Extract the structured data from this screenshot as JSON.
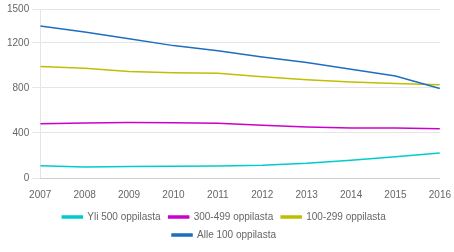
{
  "chart_data": {
    "type": "line",
    "x": [
      2007,
      2008,
      2009,
      2010,
      2011,
      2012,
      2013,
      2014,
      2015,
      2016
    ],
    "series": [
      {
        "name": "Alle 100 oppilasta",
        "color": "#1f6ebf",
        "values": [
          1350,
          1295,
          1235,
          1175,
          1130,
          1075,
          1025,
          965,
          905,
          795
        ]
      },
      {
        "name": "100-299 oppilasta",
        "color": "#bfbf00",
        "values": [
          990,
          975,
          945,
          935,
          930,
          898,
          872,
          852,
          838,
          828
        ]
      },
      {
        "name": "300-499 oppilasta",
        "color": "#cc00cc",
        "values": [
          482,
          488,
          492,
          491,
          487,
          468,
          452,
          443,
          443,
          438
        ]
      },
      {
        "name": "Yli 500 oppilasta",
        "color": "#00cccc",
        "values": [
          108,
          98,
          103,
          105,
          107,
          114,
          130,
          158,
          188,
          222
        ]
      }
    ],
    "xlim": [
      2007,
      2016
    ],
    "xticks": [
      2007,
      2008,
      2009,
      2010,
      2011,
      2012,
      2013,
      2014,
      2015,
      2016
    ],
    "ylim": [
      0,
      1500
    ],
    "yticks": [
      0,
      400,
      800,
      1200,
      1500
    ],
    "grid": true,
    "legend": "bottom"
  }
}
